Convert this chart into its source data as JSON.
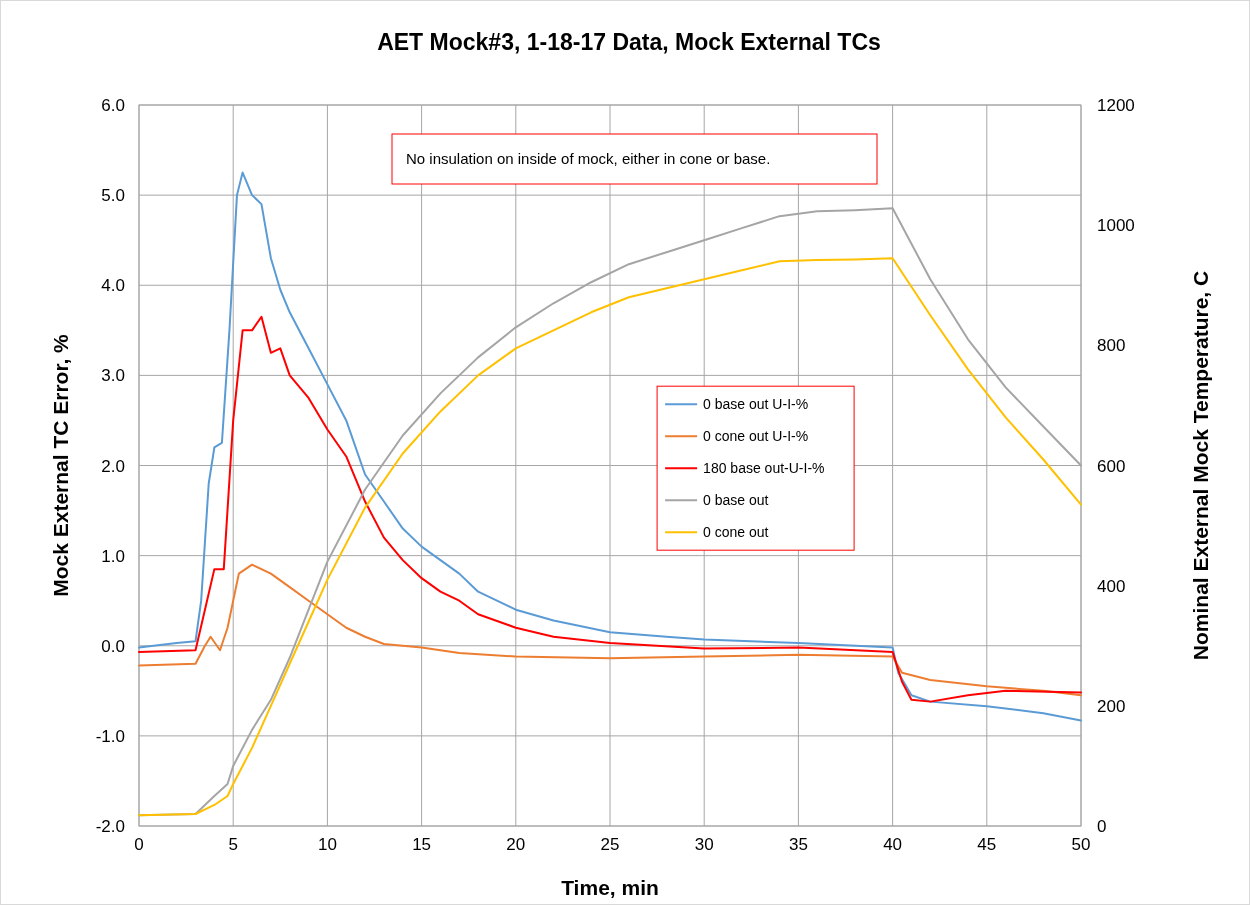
{
  "chart_data": {
    "type": "line",
    "title": "AET Mock#3, 1-18-17 Data, Mock External TCs",
    "xlabel": "Time, min",
    "ylabel": "Mock External TC Error, %",
    "y2label": "Nominal External Mock Temperature, C",
    "annotations": [
      "No insulation on inside of mock, either in cone or base."
    ],
    "xlim": [
      0,
      50
    ],
    "xticks": [
      0,
      5,
      10,
      15,
      20,
      25,
      30,
      35,
      40,
      45,
      50
    ],
    "ylim": [
      -2,
      6
    ],
    "yticks": [
      {
        "value": -2,
        "label": "-2.0"
      },
      {
        "value": -1,
        "label": "-1.0"
      },
      {
        "value": 0,
        "label": "0.0"
      },
      {
        "value": 1,
        "label": "1.0"
      },
      {
        "value": 2,
        "label": "2.0"
      },
      {
        "value": 3,
        "label": "3.0"
      },
      {
        "value": 4,
        "label": "4.0"
      },
      {
        "value": 5,
        "label": "5.0"
      },
      {
        "value": 6,
        "label": "6.0"
      }
    ],
    "y2lim": [
      0,
      1200
    ],
    "y2ticks": [
      0,
      200,
      400,
      600,
      800,
      1000,
      1200
    ],
    "grid": true,
    "legend": "right",
    "marker": "none",
    "line_style": "solid",
    "series": [
      {
        "name": "0 base out U-I-%",
        "color": "#5b9bd5",
        "x": [
          0,
          2,
          3,
          3.3,
          3.7,
          4,
          4.4,
          4.8,
          5.2,
          5.5,
          6,
          6.5,
          7,
          7.5,
          8,
          9,
          10,
          11,
          12,
          13,
          14,
          15,
          16,
          17,
          18,
          19,
          20,
          22,
          25,
          28,
          30,
          35,
          40,
          40.3,
          41,
          42,
          45,
          48,
          50
        ],
        "values": [
          -0.02,
          0.03,
          0.05,
          0.5,
          1.8,
          2.2,
          2.25,
          3.5,
          5.0,
          5.25,
          5.0,
          4.9,
          4.3,
          3.95,
          3.7,
          3.3,
          2.9,
          2.5,
          1.9,
          1.6,
          1.3,
          1.1,
          0.95,
          0.8,
          0.6,
          0.5,
          0.4,
          0.28,
          0.15,
          0.1,
          0.07,
          0.03,
          -0.02,
          -0.3,
          -0.55,
          -0.62,
          -0.67,
          -0.75,
          -0.83
        ]
      },
      {
        "name": "0 cone out U-I-%",
        "color": "#ed7d31",
        "x": [
          0,
          3,
          3.5,
          3.8,
          4.3,
          4.7,
          5.3,
          6,
          7,
          8,
          9,
          10,
          11,
          12,
          13,
          15,
          17,
          20,
          25,
          30,
          35,
          40,
          40.5,
          42,
          45,
          48,
          50
        ],
        "values": [
          -0.22,
          -0.2,
          0.0,
          0.1,
          -0.05,
          0.2,
          0.8,
          0.9,
          0.8,
          0.65,
          0.5,
          0.35,
          0.2,
          0.1,
          0.02,
          -0.02,
          -0.08,
          -0.12,
          -0.14,
          -0.12,
          -0.1,
          -0.12,
          -0.3,
          -0.38,
          -0.45,
          -0.5,
          -0.55
        ]
      },
      {
        "name": "180 base out-U-I-%",
        "color": "#ff0000",
        "x": [
          0,
          3,
          3.5,
          4,
          4.5,
          5,
          5.5,
          6,
          6.5,
          7,
          7.5,
          8,
          9,
          10,
          11,
          12,
          13,
          14,
          15,
          16,
          17,
          18,
          20,
          22,
          25,
          30,
          35,
          40,
          40.5,
          41,
          42,
          44,
          46,
          50
        ],
        "values": [
          -0.07,
          -0.05,
          0.4,
          0.85,
          0.85,
          2.5,
          3.5,
          3.5,
          3.65,
          3.25,
          3.3,
          3.0,
          2.75,
          2.4,
          2.1,
          1.6,
          1.2,
          0.95,
          0.75,
          0.6,
          0.5,
          0.35,
          0.2,
          0.1,
          0.03,
          -0.03,
          -0.02,
          -0.07,
          -0.4,
          -0.6,
          -0.62,
          -0.55,
          -0.5,
          -0.52
        ]
      },
      {
        "name": "0 base out",
        "color": "#a5a5a5",
        "axis": "y2",
        "x": [
          0,
          3,
          4,
          4.7,
          5,
          6,
          7,
          8,
          9,
          10,
          12,
          14,
          16,
          18,
          20,
          22,
          24,
          26,
          28,
          30,
          32,
          34,
          36,
          38,
          40,
          42,
          44,
          46,
          48,
          50
        ],
        "values": [
          18,
          20,
          50,
          70,
          100,
          160,
          210,
          280,
          360,
          440,
          560,
          650,
          720,
          780,
          830,
          870,
          905,
          935,
          955,
          975,
          995,
          1015,
          1023,
          1025,
          1028,
          910,
          810,
          730,
          665,
          600
        ]
      },
      {
        "name": "0 cone out",
        "color": "#ffc000",
        "axis": "y2",
        "x": [
          0,
          3,
          4,
          4.7,
          5,
          6,
          7,
          8,
          9,
          10,
          12,
          14,
          16,
          18,
          20,
          22,
          24,
          26,
          28,
          30,
          32,
          34,
          36,
          38,
          40,
          42,
          44,
          46,
          48,
          50
        ],
        "values": [
          18,
          20,
          35,
          50,
          70,
          130,
          200,
          270,
          340,
          410,
          530,
          620,
          690,
          750,
          795,
          825,
          855,
          880,
          895,
          910,
          925,
          940,
          942,
          943,
          945,
          850,
          760,
          680,
          610,
          535
        ]
      }
    ]
  }
}
